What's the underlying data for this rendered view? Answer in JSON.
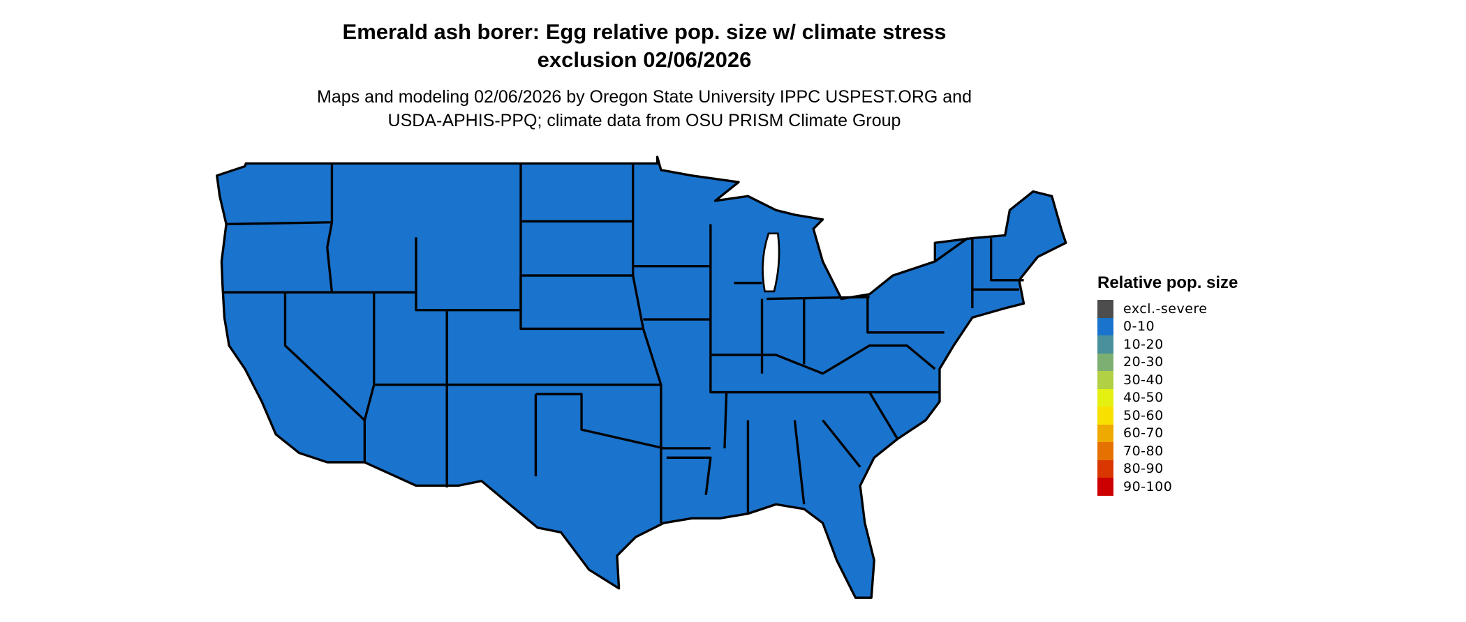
{
  "title_line1": "Emerald ash borer: Egg relative pop. size w/ climate stress",
  "title_line2": "exclusion 02/06/2026",
  "subtitle_line1": "Maps and modeling 02/06/2026 by Oregon State University IPPC USPEST.ORG and",
  "subtitle_line2": "USDA-APHIS-PPQ; climate data from OSU PRISM Climate Group",
  "map": {
    "region": "Contiguous United States",
    "fill_class": "0-10",
    "fill_color": "#1a73cc",
    "border_color": "#000000"
  },
  "legend": {
    "title": "Relative pop. size",
    "items": [
      {
        "label": "excl.-severe",
        "color": "#4d4d4d"
      },
      {
        "label": "0-10",
        "color": "#1a73cc"
      },
      {
        "label": "10-20",
        "color": "#4a8f9c"
      },
      {
        "label": "20-30",
        "color": "#7daf72"
      },
      {
        "label": "30-40",
        "color": "#b1d044"
      },
      {
        "label": "40-50",
        "color": "#e4f012"
      },
      {
        "label": "50-60",
        "color": "#f8e000"
      },
      {
        "label": "60-70",
        "color": "#eeaa00"
      },
      {
        "label": "70-80",
        "color": "#e57200"
      },
      {
        "label": "80-90",
        "color": "#da3600"
      },
      {
        "label": "90-100",
        "color": "#cc0000"
      }
    ]
  }
}
